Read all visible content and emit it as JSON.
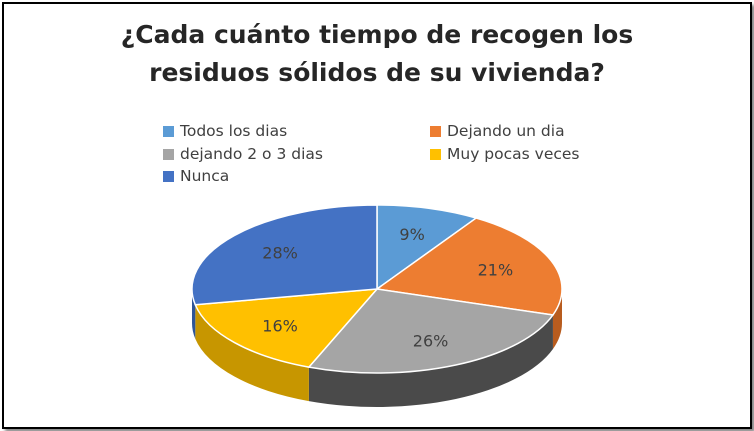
{
  "chart_data": {
    "type": "pie",
    "title_lines": [
      "¿Cada cuánto tiempo de recogen los",
      "residuos sólidos de su vivienda?"
    ],
    "legend_placement": "top",
    "slices": [
      {
        "label": "Todos los dias",
        "value": 9,
        "display": "9%",
        "color": "#5B9BD5",
        "side": "#3E74A8"
      },
      {
        "label": "Dejando un dia",
        "value": 21,
        "display": "21%",
        "color": "#ED7D31",
        "side": "#B85C1E"
      },
      {
        "label": "dejando 2 o 3 dias",
        "value": 26,
        "display": "26%",
        "color": "#A5A5A5",
        "side": "#4A4A4A"
      },
      {
        "label": "Muy pocas veces",
        "value": 16,
        "display": "16%",
        "color": "#FFC000",
        "side": "#C79600"
      },
      {
        "label": "Nunca",
        "value": 28,
        "display": "28%",
        "color": "#4472C4",
        "side": "#2E5597"
      }
    ]
  }
}
